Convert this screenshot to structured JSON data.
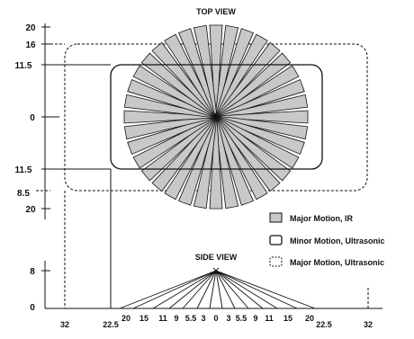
{
  "top_view": {
    "title": "TOP VIEW",
    "y_labels": [
      "20",
      "16",
      "11.5",
      "0",
      "11.5",
      "8.5",
      "20"
    ]
  },
  "side_view": {
    "title": "SIDE VIEW",
    "y_labels": [
      "8",
      "0"
    ],
    "x_labels": [
      "32",
      "22.5",
      "20",
      "15",
      "11",
      "9",
      "5.5",
      "3",
      "0",
      "3",
      "5.5",
      "9",
      "11",
      "15",
      "20",
      "22.5",
      "32"
    ]
  },
  "legend": {
    "items": [
      {
        "label": "Major Motion, IR",
        "swatch": "gray-filled-box",
        "color": "#c8c8c8"
      },
      {
        "label": "Minor Motion, Ultrasonic",
        "swatch": "solid-rounded-box"
      },
      {
        "label": "Major Motion, Ultrasonic",
        "swatch": "dashed-rounded-box"
      }
    ]
  },
  "colors": {
    "ir_fill": "#c8c8c8",
    "stroke": "#111111"
  }
}
